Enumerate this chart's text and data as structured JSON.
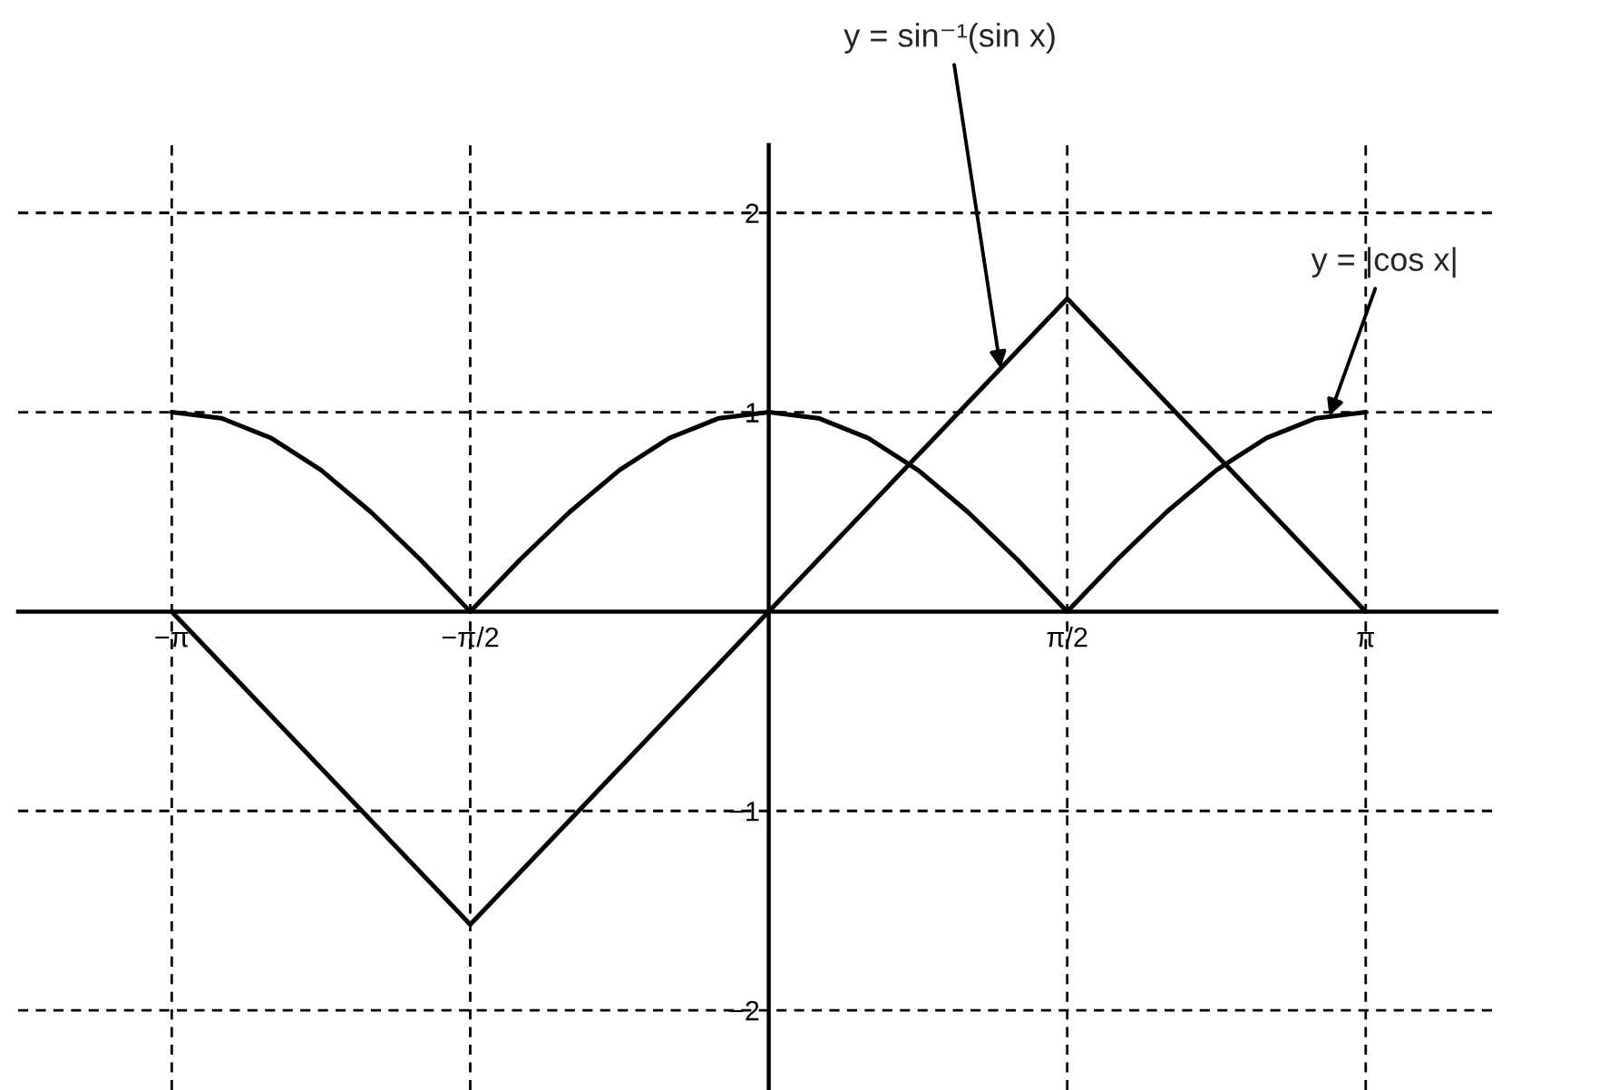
{
  "chart_data": {
    "type": "line",
    "series": [
      {
        "color": "#000000",
        "x": [
          -3.1416,
          -2.8798,
          -2.618,
          -2.3562,
          -2.0944,
          -1.8326,
          -1.5708,
          -1.309,
          -1.0472,
          -0.7854,
          -0.5236,
          -0.2618,
          0,
          0.2618,
          0.5236,
          0.7854,
          1.0472,
          1.309,
          1.5708,
          1.8326,
          2.0944,
          2.3562,
          2.618,
          2.8798,
          3.1416
        ],
        "values": [
          1,
          0.97,
          0.87,
          0.71,
          0.5,
          0.26,
          0,
          0.26,
          0.5,
          0.71,
          0.87,
          0.97,
          1,
          0.97,
          0.87,
          0.71,
          0.5,
          0.26,
          0,
          0.26,
          0.5,
          0.71,
          0.87,
          0.97,
          1
        ]
      },
      {
        "color": "#000000",
        "x": [
          -3.1416,
          -1.5708,
          1.5708,
          3.1416
        ],
        "values": [
          0,
          -1.57,
          1.57,
          0
        ]
      }
    ],
    "xlim": [
      -3.95,
      3.83
    ],
    "ylim": [
      -2.4,
      2.34
    ],
    "xticks": [
      {
        "value": -3.1416,
        "label": "−π"
      },
      {
        "value": -1.5708,
        "label": "−π/2"
      },
      {
        "value": 1.5708,
        "label": "π/2"
      },
      {
        "value": 3.1416,
        "label": "π"
      }
    ],
    "yticks": [
      2,
      1,
      {
        "value": -1,
        "label": "−1"
      },
      {
        "value": -2,
        "label": "−2"
      }
    ],
    "grid": true,
    "line_style": "solid",
    "marker": "none",
    "annotations": [
      {
        "text": "y = sin⁻¹(sin x)",
        "x": 1.22,
        "y": 1.22
      },
      {
        "text": "y = |cos x|",
        "x": 2.95,
        "y": 0.98
      }
    ]
  }
}
